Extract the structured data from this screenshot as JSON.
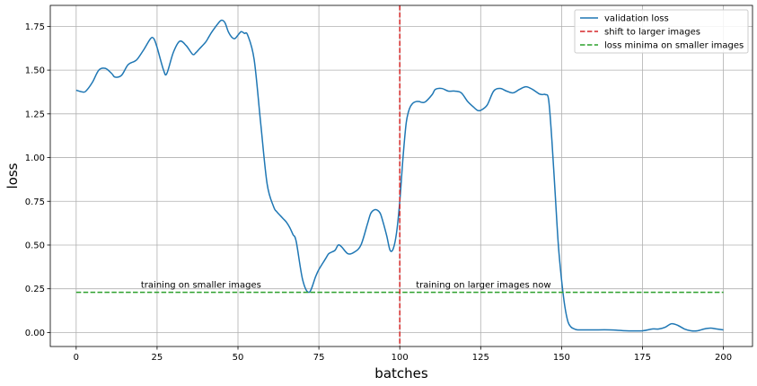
{
  "chart_data": {
    "type": "line",
    "title": "",
    "xlabel": "batches",
    "ylabel": "loss",
    "xlim": [
      -8,
      209
    ],
    "ylim": [
      -0.08,
      1.87
    ],
    "xticks": [
      0,
      25,
      50,
      75,
      100,
      125,
      150,
      175,
      200
    ],
    "yticks": [
      0.0,
      0.25,
      0.5,
      0.75,
      1.0,
      1.25,
      1.5,
      1.75
    ],
    "xtick_labels": [
      "0",
      "25",
      "50",
      "75",
      "100",
      "125",
      "150",
      "175",
      "200"
    ],
    "ytick_labels": [
      "0.00",
      "0.25",
      "0.50",
      "0.75",
      "1.00",
      "1.25",
      "1.50",
      "1.75"
    ],
    "grid": true,
    "legend_position": "top-right",
    "series": [
      {
        "name": "validation loss",
        "color": "#1f77b4",
        "style": "solid",
        "x": [
          0,
          2,
          3,
          5,
          7,
          9,
          11,
          12,
          14,
          16,
          18,
          19,
          21,
          23,
          24,
          25,
          27,
          28,
          30,
          32,
          34,
          36,
          37,
          38,
          40,
          41,
          42,
          44,
          45,
          46,
          47,
          48,
          49,
          50,
          51,
          52,
          53,
          55,
          57,
          59,
          61,
          62,
          63,
          64,
          65,
          66,
          67,
          68,
          70,
          72,
          74,
          75,
          77,
          78,
          79,
          80,
          81,
          82,
          84,
          86,
          88,
          90,
          91,
          92,
          93,
          94,
          95,
          96,
          97,
          98,
          99,
          100,
          101,
          102,
          103,
          104,
          105,
          106,
          107,
          108,
          110,
          111,
          113,
          115,
          117,
          119,
          121,
          123,
          124,
          125,
          127,
          129,
          131,
          133,
          135,
          137,
          139,
          141,
          143,
          144,
          145,
          146,
          147,
          148,
          149,
          150,
          151,
          152,
          153,
          154,
          155,
          157,
          160,
          165,
          170,
          175,
          178,
          180,
          182,
          184,
          186,
          188,
          190,
          192,
          194,
          196,
          198,
          200
        ],
        "y": [
          1.385,
          1.375,
          1.38,
          1.43,
          1.5,
          1.51,
          1.48,
          1.46,
          1.47,
          1.53,
          1.55,
          1.565,
          1.62,
          1.68,
          1.68,
          1.63,
          1.5,
          1.48,
          1.6,
          1.665,
          1.64,
          1.59,
          1.6,
          1.62,
          1.66,
          1.69,
          1.72,
          1.77,
          1.785,
          1.77,
          1.72,
          1.69,
          1.68,
          1.7,
          1.72,
          1.71,
          1.7,
          1.56,
          1.2,
          0.85,
          0.72,
          0.69,
          0.67,
          0.65,
          0.63,
          0.6,
          0.56,
          0.52,
          0.3,
          0.23,
          0.32,
          0.36,
          0.42,
          0.45,
          0.46,
          0.47,
          0.5,
          0.49,
          0.45,
          0.46,
          0.5,
          0.62,
          0.68,
          0.7,
          0.7,
          0.68,
          0.62,
          0.55,
          0.47,
          0.48,
          0.57,
          0.75,
          1.0,
          1.2,
          1.28,
          1.31,
          1.32,
          1.32,
          1.315,
          1.32,
          1.36,
          1.39,
          1.395,
          1.38,
          1.38,
          1.37,
          1.32,
          1.285,
          1.27,
          1.27,
          1.3,
          1.38,
          1.395,
          1.38,
          1.37,
          1.39,
          1.405,
          1.39,
          1.365,
          1.36,
          1.36,
          1.33,
          1.1,
          0.8,
          0.5,
          0.3,
          0.15,
          0.06,
          0.03,
          0.02,
          0.015,
          0.015,
          0.015,
          0.015,
          0.01,
          0.01,
          0.02,
          0.02,
          0.03,
          0.05,
          0.04,
          0.02,
          0.01,
          0.01,
          0.02,
          0.025,
          0.02,
          0.015
        ]
      },
      {
        "name": "shift to larger images",
        "color": "#d62728",
        "style": "dashed",
        "orientation": "vertical",
        "x_value": 100
      },
      {
        "name": "loss minima on smaller images",
        "color": "#2ca02c",
        "style": "dashed",
        "orientation": "horizontal",
        "y_value": 0.23,
        "x_range": [
          0,
          200
        ]
      }
    ],
    "annotations": [
      {
        "text": "training on smaller images",
        "x": 20,
        "y": 0.255
      },
      {
        "text": "training on larger images now",
        "x": 105,
        "y": 0.255
      }
    ]
  }
}
